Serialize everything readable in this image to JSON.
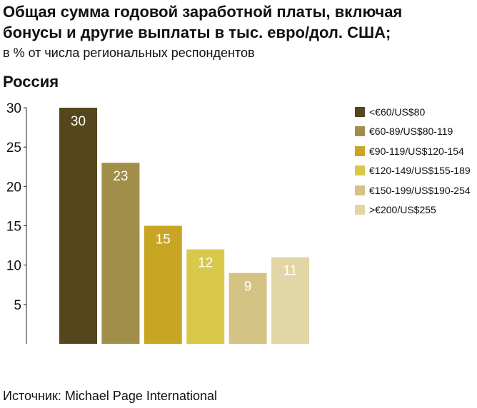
{
  "title_lines": [
    "Общая сумма годовой заработной платы, включая",
    "бонусы и другие выплаты в тыс. евро/дол. США;"
  ],
  "subtitle": "в % от числа региональных респондентов",
  "region": "Россия",
  "source": "Источник: Michael Page International",
  "chart_data": {
    "type": "bar",
    "title": "Общая сумма годовой заработной платы, включая бонусы и другие выплаты в тыс. евро/дол. США;",
    "subtitle": "в % от числа региональных респондентов",
    "categories": [
      "<€60/US$80",
      "€60-89/US$80-119",
      "€90-119/US$120-154",
      "€120-149/US$155-189",
      "€150-199/US$190-254",
      ">€200/US$255"
    ],
    "values": [
      30,
      23,
      15,
      12,
      9,
      11
    ],
    "colors": [
      "#55461c",
      "#a18e48",
      "#c8a624",
      "#d8c94a",
      "#d4c384",
      "#e2d6a6"
    ],
    "ylim": [
      0,
      30
    ],
    "yticks": [
      5,
      10,
      15,
      20,
      25,
      30
    ],
    "xlabel": "",
    "ylabel": "",
    "grid": false,
    "legend_position": "right",
    "data_labels": true
  }
}
